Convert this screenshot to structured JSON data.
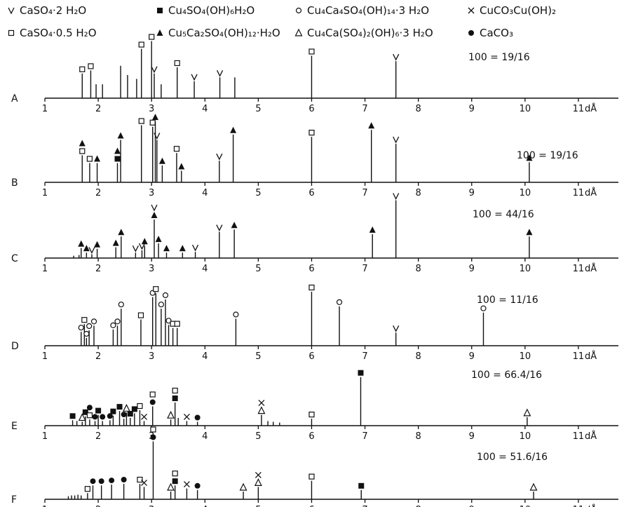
{
  "chart_data": {
    "type": "bar",
    "title": "",
    "xlabel": "",
    "ylabel": "",
    "x_unit_label": "dÅ",
    "xlim": [
      1,
      11.75
    ],
    "x_ticks": [
      1,
      2,
      3,
      4,
      5,
      6,
      7,
      8,
      9,
      10,
      11
    ],
    "grid": false,
    "legend_position": "top",
    "legend": [
      {
        "symbol": "v",
        "label": "CaSO₄·2 H₂O"
      },
      {
        "symbol": "filled-square",
        "label": "Cu₄SO₄(OH)₆H₂O"
      },
      {
        "symbol": "open-circle",
        "label": "Cu₄Ca₄SO₄(OH)₁₄·3 H₂O"
      },
      {
        "symbol": "x",
        "label": "CuCO₃Cu(OH)₂"
      },
      {
        "symbol": "open-square",
        "label": "CaSO₄·0.5 H₂O"
      },
      {
        "symbol": "filled-triangle",
        "label": "Cu₅Ca₂SO₄(OH)₁₂·H₂O"
      },
      {
        "symbol": "open-triangle",
        "label": "Cu₄Ca(SO₄)₂(OH)₆·3 H₂O"
      },
      {
        "symbol": "filled-circle",
        "label": "CaCO₃"
      }
    ],
    "panels": [
      {
        "name": "A",
        "scale_label": "100 = 19/16",
        "sticks": [
          {
            "d": 1.7,
            "h": 0.32,
            "m": [
              "open-square"
            ]
          },
          {
            "d": 1.86,
            "h": 0.36,
            "m": [
              "open-square"
            ]
          },
          {
            "d": 1.96,
            "h": 0.18,
            "m": []
          },
          {
            "d": 2.08,
            "h": 0.18,
            "m": []
          },
          {
            "d": 2.42,
            "h": 0.42,
            "m": []
          },
          {
            "d": 2.55,
            "h": 0.3,
            "m": []
          },
          {
            "d": 2.72,
            "h": 0.25,
            "m": []
          },
          {
            "d": 2.81,
            "h": 0.64,
            "m": [
              "open-square"
            ]
          },
          {
            "d": 3.0,
            "h": 0.74,
            "m": [
              "open-square"
            ]
          },
          {
            "d": 3.05,
            "h": 0.32,
            "m": [
              "v"
            ]
          },
          {
            "d": 3.18,
            "h": 0.18,
            "m": []
          },
          {
            "d": 3.48,
            "h": 0.4,
            "m": [
              "open-square"
            ]
          },
          {
            "d": 3.8,
            "h": 0.22,
            "m": [
              "v"
            ]
          },
          {
            "d": 4.28,
            "h": 0.27,
            "m": [
              "v"
            ]
          },
          {
            "d": 4.56,
            "h": 0.27,
            "m": []
          },
          {
            "d": 6.0,
            "h": 0.55,
            "m": [
              "open-square"
            ]
          },
          {
            "d": 7.58,
            "h": 0.48,
            "m": [
              "v"
            ]
          }
        ]
      },
      {
        "name": "B",
        "scale_label": "100 = 19/16",
        "sticks": [
          {
            "d": 1.7,
            "h": 0.35,
            "m": [
              "open-square",
              "filled-triangle"
            ]
          },
          {
            "d": 1.84,
            "h": 0.25,
            "m": [
              "open-square"
            ]
          },
          {
            "d": 1.98,
            "h": 0.25,
            "m": [
              "filled-triangle"
            ]
          },
          {
            "d": 2.36,
            "h": 0.25,
            "m": [
              "filled-square",
              "filled-triangle"
            ]
          },
          {
            "d": 2.42,
            "h": 0.55,
            "m": [
              "filled-triangle"
            ]
          },
          {
            "d": 2.81,
            "h": 0.74,
            "m": [
              "open-square"
            ]
          },
          {
            "d": 3.02,
            "h": 0.72,
            "m": [
              "open-square"
            ]
          },
          {
            "d": 3.07,
            "h": 0.79,
            "m": [
              "filled-triangle"
            ]
          },
          {
            "d": 3.1,
            "h": 0.55,
            "m": [
              "v"
            ]
          },
          {
            "d": 3.2,
            "h": 0.22,
            "m": [
              "filled-triangle"
            ]
          },
          {
            "d": 3.47,
            "h": 0.38,
            "m": [
              "open-square"
            ]
          },
          {
            "d": 3.56,
            "h": 0.15,
            "m": [
              "filled-triangle"
            ]
          },
          {
            "d": 4.27,
            "h": 0.28,
            "m": [
              "v"
            ]
          },
          {
            "d": 4.53,
            "h": 0.62,
            "m": [
              "filled-triangle"
            ]
          },
          {
            "d": 6.0,
            "h": 0.59,
            "m": [
              "open-square"
            ]
          },
          {
            "d": 7.12,
            "h": 0.68,
            "m": [
              "filled-triangle"
            ]
          },
          {
            "d": 7.58,
            "h": 0.5,
            "m": [
              "v"
            ]
          },
          {
            "d": 10.08,
            "h": 0.26,
            "m": [
              "filled-triangle"
            ]
          }
        ]
      },
      {
        "name": "C",
        "scale_label": "100 = 44/16",
        "sticks": [
          {
            "d": 1.54,
            "h": 0.03,
            "m": []
          },
          {
            "d": 1.64,
            "h": 0.04,
            "m": []
          },
          {
            "d": 1.68,
            "h": 0.13,
            "m": [
              "filled-triangle"
            ]
          },
          {
            "d": 1.78,
            "h": 0.07,
            "m": [
              "filled-triangle"
            ]
          },
          {
            "d": 1.88,
            "h": 0.05,
            "m": [
              "v"
            ]
          },
          {
            "d": 1.98,
            "h": 0.12,
            "m": [
              "filled-triangle"
            ]
          },
          {
            "d": 2.33,
            "h": 0.14,
            "m": [
              "filled-triangle"
            ]
          },
          {
            "d": 2.43,
            "h": 0.28,
            "m": [
              "filled-triangle"
            ]
          },
          {
            "d": 2.7,
            "h": 0.07,
            "m": [
              "v"
            ]
          },
          {
            "d": 2.82,
            "h": 0.1,
            "m": [
              "v"
            ]
          },
          {
            "d": 2.87,
            "h": 0.16,
            "m": [
              "filled-triangle"
            ]
          },
          {
            "d": 3.05,
            "h": 0.5,
            "m": [
              "filled-triangle",
              "v"
            ]
          },
          {
            "d": 3.13,
            "h": 0.19,
            "m": [
              "filled-triangle"
            ]
          },
          {
            "d": 3.28,
            "h": 0.07,
            "m": [
              "filled-triangle"
            ]
          },
          {
            "d": 3.58,
            "h": 0.07,
            "m": [
              "filled-triangle"
            ]
          },
          {
            "d": 3.82,
            "h": 0.08,
            "m": [
              "v"
            ]
          },
          {
            "d": 4.27,
            "h": 0.34,
            "m": [
              "v"
            ]
          },
          {
            "d": 4.55,
            "h": 0.37,
            "m": [
              "filled-triangle"
            ]
          },
          {
            "d": 7.14,
            "h": 0.31,
            "m": [
              "filled-triangle"
            ]
          },
          {
            "d": 7.58,
            "h": 0.75,
            "m": [
              "v"
            ]
          },
          {
            "d": 10.08,
            "h": 0.28,
            "m": [
              "filled-triangle"
            ]
          }
        ]
      },
      {
        "name": "D",
        "scale_label": "100 = 11/16",
        "sticks": [
          {
            "d": 1.68,
            "h": 0.18,
            "m": [
              "open-circle"
            ]
          },
          {
            "d": 1.74,
            "h": 0.28,
            "m": [
              "open-square"
            ]
          },
          {
            "d": 1.78,
            "h": 0.1,
            "m": [
              "open-circle"
            ]
          },
          {
            "d": 1.83,
            "h": 0.2,
            "m": [
              "open-circle"
            ]
          },
          {
            "d": 1.92,
            "h": 0.26,
            "m": [
              "open-circle"
            ]
          },
          {
            "d": 2.28,
            "h": 0.21,
            "m": [
              "open-circle"
            ]
          },
          {
            "d": 2.36,
            "h": 0.26,
            "m": [
              "open-circle"
            ]
          },
          {
            "d": 2.43,
            "h": 0.48,
            "m": [
              "open-circle"
            ]
          },
          {
            "d": 2.8,
            "h": 0.34,
            "m": [
              "open-square"
            ]
          },
          {
            "d": 3.02,
            "h": 0.63,
            "m": [
              "open-circle"
            ]
          },
          {
            "d": 3.08,
            "h": 0.68,
            "m": [
              "open-square"
            ]
          },
          {
            "d": 3.18,
            "h": 0.48,
            "m": [
              "open-circle"
            ]
          },
          {
            "d": 3.26,
            "h": 0.6,
            "m": [
              "open-circle"
            ]
          },
          {
            "d": 3.32,
            "h": 0.27,
            "m": [
              "open-circle"
            ]
          },
          {
            "d": 3.4,
            "h": 0.23,
            "m": [
              "open-square"
            ]
          },
          {
            "d": 3.48,
            "h": 0.23,
            "m": [
              "open-square"
            ]
          },
          {
            "d": 4.58,
            "h": 0.35,
            "m": [
              "open-circle"
            ]
          },
          {
            "d": 6.0,
            "h": 0.7,
            "m": [
              "open-square"
            ]
          },
          {
            "d": 6.52,
            "h": 0.51,
            "m": [
              "open-circle"
            ]
          },
          {
            "d": 7.58,
            "h": 0.17,
            "m": [
              "v"
            ]
          },
          {
            "d": 9.22,
            "h": 0.43,
            "m": [
              "open-circle"
            ]
          }
        ]
      },
      {
        "name": "E",
        "scale_label": "100 = 66.4/16",
        "sticks": [
          {
            "d": 1.52,
            "h": 0.07,
            "m": [
              "filled-square"
            ]
          },
          {
            "d": 1.6,
            "h": 0.06,
            "m": []
          },
          {
            "d": 1.7,
            "h": 0.05,
            "m": [
              "open-triangle"
            ]
          },
          {
            "d": 1.76,
            "h": 0.12,
            "m": [
              "filled-square"
            ]
          },
          {
            "d": 1.84,
            "h": 0.08,
            "m": [
              "open-square",
              "filled-circle"
            ]
          },
          {
            "d": 1.94,
            "h": 0.06,
            "m": [
              "filled-circle"
            ]
          },
          {
            "d": 2.0,
            "h": 0.14,
            "m": [
              "filled-square"
            ]
          },
          {
            "d": 2.08,
            "h": 0.06,
            "m": [
              "filled-circle"
            ]
          },
          {
            "d": 2.22,
            "h": 0.07,
            "m": [
              "filled-circle"
            ]
          },
          {
            "d": 2.28,
            "h": 0.13,
            "m": [
              "filled-square"
            ]
          },
          {
            "d": 2.4,
            "h": 0.19,
            "m": [
              "filled-square"
            ]
          },
          {
            "d": 2.48,
            "h": 0.09,
            "m": [
              "filled-circle"
            ]
          },
          {
            "d": 2.53,
            "h": 0.17,
            "m": [
              "open-triangle"
            ]
          },
          {
            "d": 2.6,
            "h": 0.1,
            "m": [
              "filled-square"
            ]
          },
          {
            "d": 2.68,
            "h": 0.16,
            "m": [
              "filled-square"
            ]
          },
          {
            "d": 2.78,
            "h": 0.2,
            "m": [
              "open-square"
            ]
          },
          {
            "d": 2.86,
            "h": 0.06,
            "m": [
              "x"
            ]
          },
          {
            "d": 3.02,
            "h": 0.25,
            "m": [
              "filled-circle",
              "open-square"
            ]
          },
          {
            "d": 3.36,
            "h": 0.08,
            "m": [
              "open-triangle"
            ]
          },
          {
            "d": 3.44,
            "h": 0.3,
            "m": [
              "filled-square",
              "open-square"
            ]
          },
          {
            "d": 3.5,
            "h": 0.1,
            "m": []
          },
          {
            "d": 3.66,
            "h": 0.06,
            "m": [
              "x"
            ]
          },
          {
            "d": 3.86,
            "h": 0.05,
            "m": [
              "filled-circle"
            ]
          },
          {
            "d": 5.06,
            "h": 0.14,
            "m": [
              "open-triangle",
              "x"
            ]
          },
          {
            "d": 5.18,
            "h": 0.06,
            "m": []
          },
          {
            "d": 5.28,
            "h": 0.05,
            "m": []
          },
          {
            "d": 5.4,
            "h": 0.04,
            "m": []
          },
          {
            "d": 6.0,
            "h": 0.09,
            "m": [
              "open-square"
            ]
          },
          {
            "d": 6.92,
            "h": 0.63,
            "m": [
              "filled-square"
            ]
          },
          {
            "d": 10.04,
            "h": 0.11,
            "m": [
              "open-triangle"
            ]
          }
        ]
      },
      {
        "name": "F",
        "scale_label": "100 = 51.6/16",
        "sticks": [
          {
            "d": 1.44,
            "h": 0.04,
            "m": []
          },
          {
            "d": 1.5,
            "h": 0.05,
            "m": []
          },
          {
            "d": 1.56,
            "h": 0.05,
            "m": []
          },
          {
            "d": 1.62,
            "h": 0.06,
            "m": []
          },
          {
            "d": 1.68,
            "h": 0.05,
            "m": []
          },
          {
            "d": 1.8,
            "h": 0.08,
            "m": [
              "open-square"
            ]
          },
          {
            "d": 1.9,
            "h": 0.18,
            "m": [
              "filled-circle"
            ]
          },
          {
            "d": 2.06,
            "h": 0.18,
            "m": [
              "filled-circle"
            ]
          },
          {
            "d": 2.25,
            "h": 0.19,
            "m": [
              "filled-circle"
            ]
          },
          {
            "d": 2.48,
            "h": 0.2,
            "m": [
              "filled-circle"
            ]
          },
          {
            "d": 2.78,
            "h": 0.2,
            "m": [
              "open-square"
            ]
          },
          {
            "d": 2.86,
            "h": 0.16,
            "m": [
              "x"
            ]
          },
          {
            "d": 3.03,
            "h": 0.75,
            "m": [
              "filled-circle",
              "open-square"
            ]
          },
          {
            "d": 3.36,
            "h": 0.1,
            "m": [
              "open-triangle"
            ]
          },
          {
            "d": 3.44,
            "h": 0.18,
            "m": [
              "filled-square",
              "open-square"
            ]
          },
          {
            "d": 3.66,
            "h": 0.14,
            "m": [
              "x"
            ]
          },
          {
            "d": 3.86,
            "h": 0.12,
            "m": [
              "filled-circle"
            ]
          },
          {
            "d": 4.72,
            "h": 0.1,
            "m": [
              "open-triangle"
            ]
          },
          {
            "d": 5.0,
            "h": 0.16,
            "m": [
              "open-triangle",
              "x"
            ]
          },
          {
            "d": 6.0,
            "h": 0.24,
            "m": [
              "open-square"
            ]
          },
          {
            "d": 6.93,
            "h": 0.12,
            "m": [
              "filled-square"
            ]
          },
          {
            "d": 10.16,
            "h": 0.1,
            "m": [
              "open-triangle"
            ]
          }
        ]
      }
    ]
  }
}
